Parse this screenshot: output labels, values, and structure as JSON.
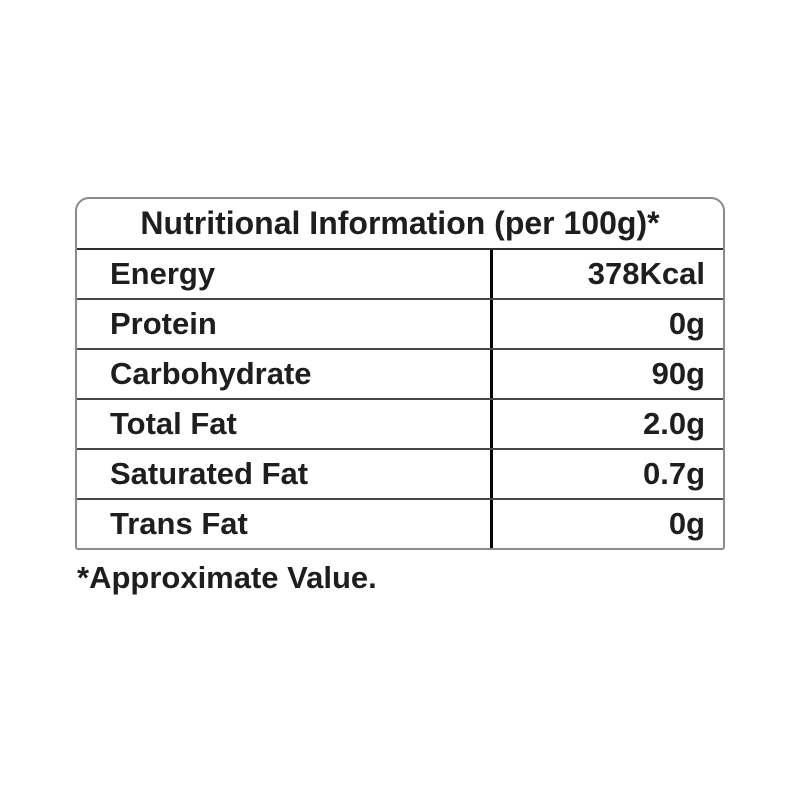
{
  "nutrition_table": {
    "title": "Nutritional Information (per 100g)*",
    "rows": [
      {
        "label": "Energy",
        "value": "378Kcal"
      },
      {
        "label": "Protein",
        "value": "0g"
      },
      {
        "label": "Carbohydrate",
        "value": "90g"
      },
      {
        "label": "Total Fat",
        "value": "2.0g"
      },
      {
        "label": "Saturated Fat",
        "value": "0.7g"
      },
      {
        "label": "Trans Fat",
        "value": "0g"
      }
    ],
    "footnote": "*Approximate Value."
  },
  "colors": {
    "background": "#ffffff",
    "text": "#1e1e1e",
    "outer_border": "#8a8a8a",
    "row_separator": "#474747",
    "header_separator": "#2e2e2e",
    "column_divider": "#000000"
  }
}
